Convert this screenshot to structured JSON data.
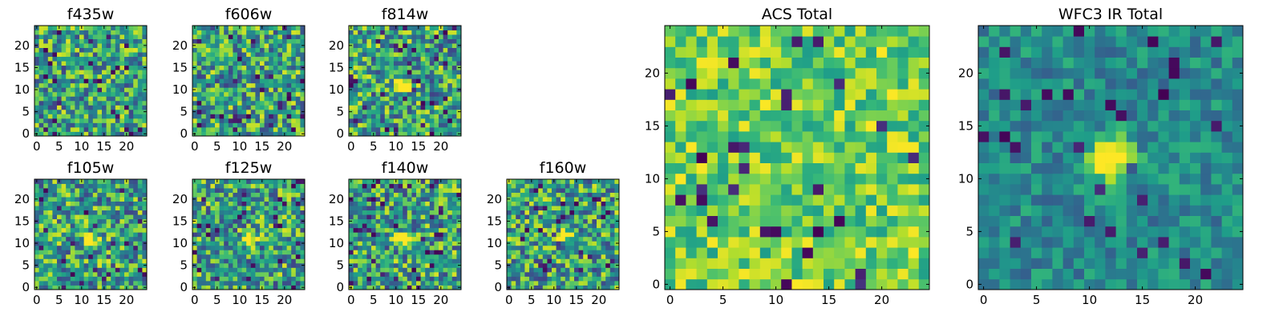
{
  "chart_data": [
    {
      "type": "heatmap",
      "title": "f435w",
      "xticks": [
        "0",
        "5",
        "10",
        "15",
        "20"
      ],
      "yticks": [
        "0",
        "5",
        "10",
        "15",
        "20"
      ],
      "grid_size": 25,
      "xlim": [
        -0.5,
        24.5
      ],
      "ylim": [
        -0.5,
        24.5
      ],
      "colormap": "viridis",
      "peak": null
    },
    {
      "type": "heatmap",
      "title": "f606w",
      "xticks": [
        "0",
        "5",
        "10",
        "15",
        "20"
      ],
      "yticks": [
        "0",
        "5",
        "10",
        "15",
        "20"
      ],
      "grid_size": 25,
      "xlim": [
        -0.5,
        24.5
      ],
      "ylim": [
        -0.5,
        24.5
      ],
      "colormap": "viridis",
      "peak": null
    },
    {
      "type": "heatmap",
      "title": "f814w",
      "xticks": [
        "0",
        "5",
        "10",
        "15",
        "20"
      ],
      "yticks": [
        "0",
        "5",
        "10",
        "15",
        "20"
      ],
      "grid_size": 25,
      "xlim": [
        -0.5,
        24.5
      ],
      "ylim": [
        -0.5,
        24.5
      ],
      "colormap": "viridis",
      "peak": [
        12,
        11
      ]
    },
    {
      "type": "heatmap",
      "title": "f105w",
      "xticks": [
        "0",
        "5",
        "10",
        "15",
        "20"
      ],
      "yticks": [
        "0",
        "5",
        "10",
        "15",
        "20"
      ],
      "grid_size": 25,
      "xlim": [
        -0.5,
        24.5
      ],
      "ylim": [
        -0.5,
        24.5
      ],
      "colormap": "viridis",
      "peak": [
        12,
        11
      ]
    },
    {
      "type": "heatmap",
      "title": "f125w",
      "xticks": [
        "0",
        "5",
        "10",
        "15",
        "20"
      ],
      "yticks": [
        "0",
        "5",
        "10",
        "15",
        "20"
      ],
      "grid_size": 25,
      "xlim": [
        -0.5,
        24.5
      ],
      "ylim": [
        -0.5,
        24.5
      ],
      "colormap": "viridis",
      "peak": [
        12,
        11
      ]
    },
    {
      "type": "heatmap",
      "title": "f140w",
      "xticks": [
        "0",
        "5",
        "10",
        "15",
        "20"
      ],
      "yticks": [
        "0",
        "5",
        "10",
        "15",
        "20"
      ],
      "grid_size": 25,
      "xlim": [
        -0.5,
        24.5
      ],
      "ylim": [
        -0.5,
        24.5
      ],
      "colormap": "viridis",
      "peak": [
        12,
        11
      ]
    },
    {
      "type": "heatmap",
      "title": "f160w",
      "xticks": [
        "0",
        "5",
        "10",
        "15",
        "20"
      ],
      "yticks": [
        "0",
        "5",
        "10",
        "15",
        "20"
      ],
      "grid_size": 25,
      "xlim": [
        -0.5,
        24.5
      ],
      "ylim": [
        -0.5,
        24.5
      ],
      "colormap": "viridis",
      "peak": [
        12,
        12
      ]
    },
    {
      "type": "heatmap",
      "title": "ACS Total",
      "xticks": [
        "0",
        "5",
        "10",
        "15",
        "20"
      ],
      "yticks": [
        "0",
        "5",
        "10",
        "15",
        "20"
      ],
      "grid_size": 25,
      "xlim": [
        -0.5,
        24.5
      ],
      "ylim": [
        -0.5,
        24.5
      ],
      "colormap": "viridis",
      "peak": null
    },
    {
      "type": "heatmap",
      "title": "WFC3 IR Total",
      "xticks": [
        "0",
        "5",
        "10",
        "15",
        "20"
      ],
      "yticks": [
        "0",
        "5",
        "10",
        "15",
        "20"
      ],
      "grid_size": 25,
      "xlim": [
        -0.5,
        24.5
      ],
      "ylim": [
        -0.5,
        24.5
      ],
      "colormap": "viridis",
      "peak": [
        12,
        12
      ]
    }
  ]
}
